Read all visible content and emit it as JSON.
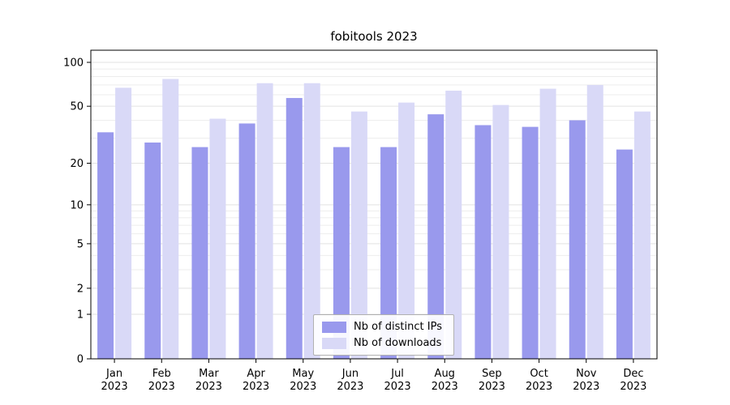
{
  "chart_data": {
    "type": "bar",
    "title": "fobitools 2023",
    "categories": [
      "Jan",
      "Feb",
      "Mar",
      "Apr",
      "May",
      "Jun",
      "Jul",
      "Aug",
      "Sep",
      "Oct",
      "Nov",
      "Dec"
    ],
    "year": "2023",
    "series": [
      {
        "name": "Nb of distinct IPs",
        "color": "#9999ed",
        "values": [
          33,
          28,
          26,
          38,
          57,
          26,
          26,
          44,
          37,
          36,
          40,
          25
        ]
      },
      {
        "name": "Nb of downloads",
        "color": "#d9d9f7",
        "values": [
          67,
          77,
          41,
          72,
          72,
          46,
          53,
          64,
          51,
          66,
          70,
          46
        ]
      }
    ],
    "yticks": [
      0,
      1,
      2,
      5,
      10,
      20,
      50,
      100
    ],
    "minor_yticks": [
      3,
      4,
      6,
      7,
      8,
      9,
      30,
      40,
      60,
      70,
      80,
      90
    ],
    "scale": "log1p",
    "ylim": [
      0,
      121
    ],
    "xlabel": "",
    "ylabel": "",
    "grid": true,
    "legend_position": "bottom-center"
  }
}
